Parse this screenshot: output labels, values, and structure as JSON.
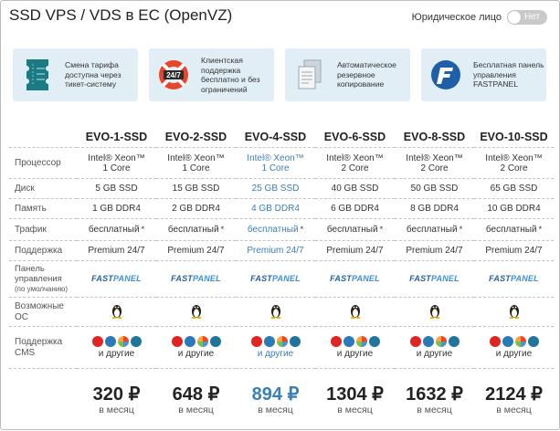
{
  "title": "SSD VPS / VDS в ЕС (OpenVZ)",
  "legal": {
    "label": "Юридическое лицо",
    "toggle": "Нет"
  },
  "features": [
    {
      "icon": "ticket-icon",
      "text": "Смена тарифа доступна через тикет-систему"
    },
    {
      "icon": "support-24-7-icon",
      "text": "Клиентская поддержка бесплатно и без ограничений"
    },
    {
      "icon": "backup-docs-icon",
      "text": "Автоматическое резервное копирование"
    },
    {
      "icon": "fastpanel-logo-icon",
      "text": "Бесплатная панель управления FASTPANEL"
    }
  ],
  "accent": "#3a7fb5",
  "plans": [
    {
      "name": "EVO-1-SSD",
      "cpu1": "Intel® Xeon™",
      "cpu2": "1 Core",
      "disk": "5 GB SSD",
      "ram": "1 GB DDR4",
      "traffic": "бесплатный",
      "support": "Premium 24/7",
      "panel": "FASTPANEL",
      "others": "и другие",
      "price": "320 ₽",
      "per": "в месяц"
    },
    {
      "name": "EVO-2-SSD",
      "cpu1": "Intel® Xeon™",
      "cpu2": "1 Core",
      "disk": "15 GB SSD",
      "ram": "2 GB DDR4",
      "traffic": "бесплатный",
      "support": "Premium 24/7",
      "panel": "FASTPANEL",
      "others": "и другие",
      "price": "648 ₽",
      "per": "в месяц"
    },
    {
      "name": "EVO-4-SSD",
      "cpu1": "Intel® Xeon™",
      "cpu2": "1 Core",
      "disk": "25 GB SSD",
      "ram": "4 GB DDR4",
      "traffic": "бесплатный",
      "support": "Premium 24/7",
      "panel": "FASTPANEL",
      "others": "и другие",
      "price": "894 ₽",
      "per": "в месяц"
    },
    {
      "name": "EVO-6-SSD",
      "cpu1": "Intel® Xeon™",
      "cpu2": "2 Core",
      "disk": "40 GB SSD",
      "ram": "6 GB DDR4",
      "traffic": "бесплатный",
      "support": "Premium 24/7",
      "panel": "FASTPANEL",
      "others": "и другие",
      "price": "1304 ₽",
      "per": "в месяц"
    },
    {
      "name": "EVO-8-SSD",
      "cpu1": "Intel® Xeon™",
      "cpu2": "2 Core",
      "disk": "50 GB SSD",
      "ram": "8 GB DDR4",
      "traffic": "бесплатный",
      "support": "Premium 24/7",
      "panel": "FASTPANEL",
      "others": "и другие",
      "price": "1632 ₽",
      "per": "в месяц"
    },
    {
      "name": "EVO-10-SSD",
      "cpu1": "Intel® Xeon™",
      "cpu2": "2 Core",
      "disk": "65 GB SSD",
      "ram": "10 GB DDR4",
      "traffic": "бесплатный",
      "support": "Premium 24/7",
      "panel": "FASTPANEL",
      "others": "и другие",
      "price": "2124 ₽",
      "per": "в месяц"
    }
  ],
  "rows": {
    "cpu": "Процессор",
    "disk": "Диск",
    "ram": "Память",
    "traffic": "Трафик",
    "support": "Поддержка",
    "panel1": "Панель",
    "panel2": "управления",
    "panel3": "(по умолчанию)",
    "os1": "Возможные",
    "os2": "ОС",
    "cms1": "Поддержка",
    "cms2": "CMS"
  },
  "star": "*"
}
